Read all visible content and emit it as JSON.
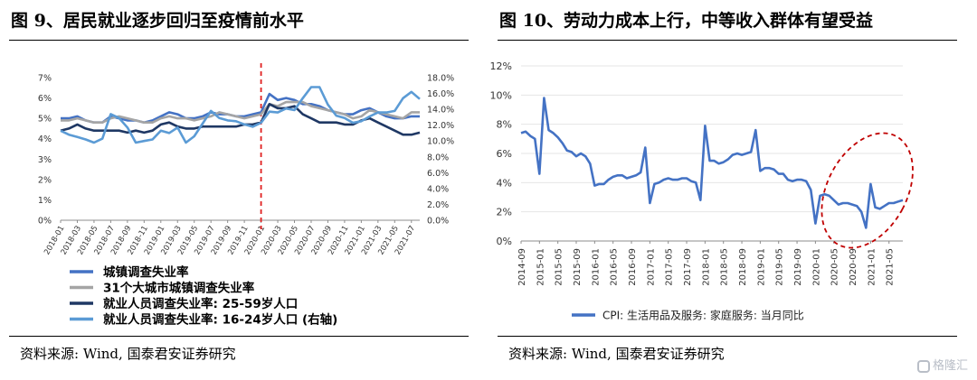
{
  "left": {
    "title": "图 9、居民就业逐步回归至疫情前水平",
    "source": "资料来源: Wind, 国泰君安证券研究",
    "chart_data": {
      "type": "line",
      "x": [
        "2018-01",
        "2018-02",
        "2018-03",
        "2018-04",
        "2018-05",
        "2018-06",
        "2018-07",
        "2018-08",
        "2018-09",
        "2018-10",
        "2018-11",
        "2018-12",
        "2019-01",
        "2019-02",
        "2019-03",
        "2019-04",
        "2019-05",
        "2019-06",
        "2019-07",
        "2019-08",
        "2019-09",
        "2019-10",
        "2019-11",
        "2019-12",
        "2020-01",
        "2020-02",
        "2020-03",
        "2020-04",
        "2020-05",
        "2020-06",
        "2020-07",
        "2020-08",
        "2020-09",
        "2020-10",
        "2020-11",
        "2020-12",
        "2021-01",
        "2021-02",
        "2021-03",
        "2021-04",
        "2021-05",
        "2021-06",
        "2021-07",
        "2021-08"
      ],
      "tick_labels": [
        "2018-01",
        "2018-03",
        "2018-05",
        "2018-07",
        "2018-09",
        "2018-11",
        "2019-01",
        "2019-03",
        "2019-05",
        "2019-07",
        "2019-09",
        "2019-11",
        "2020-01",
        "2020-03",
        "2020-05",
        "2020-07",
        "2020-09",
        "2020-11",
        "2021-01",
        "2021-03",
        "2021-05",
        "2021-07"
      ],
      "yticks_left": [
        "0%",
        "1%",
        "2%",
        "3%",
        "4%",
        "5%",
        "6%",
        "7%"
      ],
      "yticks_right": [
        "0.0%",
        "2.0%",
        "4.0%",
        "6.0%",
        "8.0%",
        "10.0%",
        "12.0%",
        "14.0%",
        "16.0%",
        "18.0%"
      ],
      "ylim_left": [
        0,
        7
      ],
      "ylim_right": [
        0,
        18
      ],
      "vline_at": "2020-01",
      "series": [
        {
          "name": "城镇调查失业率",
          "color": "#4472C4",
          "axis": "left",
          "width": 2.6,
          "values": [
            5.0,
            5.0,
            5.1,
            4.9,
            4.8,
            4.8,
            5.1,
            5.0,
            4.9,
            4.9,
            4.8,
            4.9,
            5.1,
            5.3,
            5.2,
            5.0,
            5.0,
            5.1,
            5.3,
            5.2,
            5.2,
            5.1,
            5.1,
            5.2,
            5.3,
            6.2,
            5.9,
            6.0,
            5.9,
            5.7,
            5.7,
            5.6,
            5.4,
            5.3,
            5.2,
            5.2,
            5.4,
            5.5,
            5.3,
            5.1,
            5.0,
            5.0,
            5.1,
            5.1
          ]
        },
        {
          "name": "31个大城市城镇调查失业率",
          "color": "#A5A5A5",
          "axis": "left",
          "width": 2.6,
          "values": [
            4.9,
            4.9,
            5.0,
            4.9,
            4.8,
            4.8,
            5.0,
            5.1,
            5.0,
            4.9,
            4.8,
            4.8,
            5.0,
            5.1,
            5.0,
            5.0,
            4.9,
            5.0,
            5.1,
            5.3,
            5.2,
            5.1,
            5.0,
            5.1,
            5.2,
            5.7,
            5.6,
            5.8,
            5.8,
            5.8,
            5.6,
            5.5,
            5.4,
            5.3,
            5.2,
            5.0,
            5.1,
            5.4,
            5.3,
            5.2,
            5.1,
            5.0,
            5.3,
            5.3
          ]
        },
        {
          "name": "就业人员调查失业率: 25-59岁人口",
          "color": "#1F3864",
          "axis": "left",
          "width": 2.6,
          "values": [
            4.4,
            4.5,
            4.7,
            4.5,
            4.4,
            4.4,
            4.4,
            4.4,
            4.3,
            4.4,
            4.3,
            4.4,
            4.7,
            4.8,
            4.6,
            4.5,
            4.5,
            4.6,
            4.6,
            4.6,
            4.6,
            4.6,
            4.7,
            4.7,
            4.8,
            5.7,
            5.5,
            5.5,
            5.6,
            5.2,
            5.0,
            4.8,
            4.8,
            4.8,
            4.7,
            4.7,
            4.9,
            5.0,
            4.8,
            4.6,
            4.4,
            4.2,
            4.2,
            4.3
          ]
        },
        {
          "name": "就业人员调查失业率: 16-24岁人口(右轴)",
          "color": "#5B9BD5",
          "axis": "right",
          "width": 2.6,
          "values": [
            11.3,
            10.8,
            10.5,
            10.2,
            9.8,
            10.3,
            13.4,
            12.9,
            11.7,
            9.8,
            10.0,
            10.2,
            11.3,
            11.0,
            11.7,
            9.8,
            10.6,
            12.2,
            13.8,
            12.9,
            12.6,
            12.5,
            12.1,
            11.8,
            12.3,
            13.7,
            13.6,
            14.1,
            13.9,
            15.4,
            16.8,
            16.8,
            14.6,
            13.2,
            12.9,
            12.3,
            12.5,
            13.1,
            13.6,
            13.6,
            13.8,
            15.4,
            16.2,
            15.3
          ]
        }
      ],
      "legend": [
        {
          "label": "城镇调查失业率",
          "color": "#4472C4"
        },
        {
          "label": "31个大城市城镇调查失业率",
          "color": "#A5A5A5"
        },
        {
          "label": "就业人员调查失业率: 25-59岁人口",
          "color": "#1F3864"
        },
        {
          "label": "就业人员调查失业率: 16-24岁人口 (右轴)",
          "color": "#5B9BD5"
        }
      ]
    }
  },
  "right": {
    "title": "图 10、劳动力成本上行，中等收入群体有望受益",
    "source": "资料来源: Wind, 国泰君安证券研究",
    "chart_data": {
      "type": "line",
      "x": [
        "2014-09",
        "2014-10",
        "2014-11",
        "2014-12",
        "2015-01",
        "2015-02",
        "2015-03",
        "2015-04",
        "2015-05",
        "2015-06",
        "2015-07",
        "2015-08",
        "2015-09",
        "2015-10",
        "2015-11",
        "2015-12",
        "2016-01",
        "2016-02",
        "2016-03",
        "2016-04",
        "2016-05",
        "2016-06",
        "2016-07",
        "2016-08",
        "2016-09",
        "2016-10",
        "2016-11",
        "2016-12",
        "2017-01",
        "2017-02",
        "2017-03",
        "2017-04",
        "2017-05",
        "2017-06",
        "2017-07",
        "2017-08",
        "2017-09",
        "2017-10",
        "2017-11",
        "2017-12",
        "2018-01",
        "2018-02",
        "2018-03",
        "2018-04",
        "2018-05",
        "2018-06",
        "2018-07",
        "2018-08",
        "2018-09",
        "2018-10",
        "2018-11",
        "2018-12",
        "2019-01",
        "2019-02",
        "2019-03",
        "2019-04",
        "2019-05",
        "2019-06",
        "2019-07",
        "2019-08",
        "2019-09",
        "2019-10",
        "2019-11",
        "2019-12",
        "2020-01",
        "2020-02",
        "2020-03",
        "2020-04",
        "2020-05",
        "2020-06",
        "2020-07",
        "2020-08",
        "2020-09",
        "2020-10",
        "2020-11",
        "2020-12",
        "2021-01",
        "2021-02",
        "2021-03",
        "2021-04",
        "2021-05",
        "2021-06",
        "2021-07",
        "2021-08"
      ],
      "tick_labels": [
        "2014-09",
        "2015-01",
        "2015-05",
        "2015-09",
        "2016-01",
        "2016-05",
        "2016-09",
        "2017-01",
        "2017-05",
        "2017-09",
        "2018-01",
        "2018-05",
        "2018-09",
        "2019-01",
        "2019-05",
        "2019-09",
        "2020-01",
        "2020-05",
        "2020-09",
        "2021-01",
        "2021-05"
      ],
      "yticks": [
        "0%",
        "2%",
        "4%",
        "6%",
        "8%",
        "10%",
        "12%"
      ],
      "ylim": [
        0,
        12
      ],
      "series": [
        {
          "name": "CPI: 生活用品及服务: 家庭服务: 当月同比",
          "color": "#4472C4",
          "width": 2.6,
          "values": [
            7.4,
            7.5,
            7.2,
            7.0,
            4.6,
            9.8,
            7.6,
            7.4,
            7.1,
            6.7,
            6.2,
            6.1,
            5.8,
            6.0,
            5.8,
            5.3,
            3.8,
            3.9,
            3.9,
            4.2,
            4.4,
            4.5,
            4.5,
            4.3,
            4.4,
            4.5,
            4.7,
            6.4,
            2.6,
            3.9,
            4.0,
            4.2,
            4.3,
            4.2,
            4.2,
            4.3,
            4.3,
            4.1,
            4.0,
            2.8,
            7.9,
            5.5,
            5.5,
            5.3,
            5.4,
            5.6,
            5.9,
            6.0,
            5.9,
            6.0,
            6.1,
            7.6,
            4.8,
            5.0,
            5.0,
            4.9,
            4.6,
            4.6,
            4.2,
            4.1,
            4.2,
            4.2,
            4.1,
            3.5,
            1.2,
            3.1,
            3.2,
            3.1,
            2.8,
            2.5,
            2.6,
            2.6,
            2.5,
            2.4,
            2.0,
            0.9,
            3.9,
            2.3,
            2.2,
            2.4,
            2.6,
            2.6,
            2.7,
            2.8
          ]
        }
      ],
      "legend": [
        {
          "label": "CPI: 生活用品及服务: 家庭服务: 当月同比",
          "color": "#4472C4"
        }
      ],
      "annotation": {
        "shape": "dashed-ellipse",
        "color": "#C00000"
      }
    }
  },
  "watermark": {
    "text": "格隆汇"
  }
}
